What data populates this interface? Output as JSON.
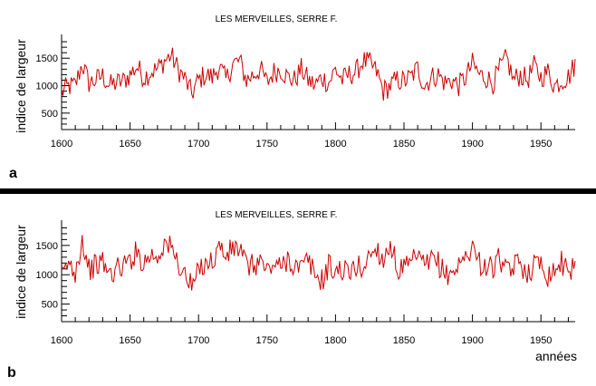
{
  "figure": {
    "separator_color": "#000000",
    "line_color": "#cc0000"
  },
  "chart_data": [
    {
      "type": "line",
      "panel_label": "a",
      "title": "LES MERVEILLES, SERRE F.",
      "xlabel": "",
      "ylabel": "indice de largeur",
      "xlim": [
        1600,
        1975
      ],
      "ylim": [
        200,
        1900
      ],
      "xticks": [
        1600,
        1650,
        1700,
        1750,
        1800,
        1850,
        1900,
        1950
      ],
      "yticks": [
        500,
        1000,
        1500
      ],
      "grid": false,
      "series": [
        {
          "x_start": 1600,
          "x_step": 5,
          "values": [
            880,
            980,
            1000,
            1400,
            1050,
            1100,
            1180,
            1000,
            1050,
            1080,
            1200,
            1350,
            1150,
            1250,
            1300,
            1450,
            1550,
            1300,
            1120,
            850,
            1100,
            1200,
            1150,
            1350,
            1100,
            1400,
            1450,
            1100,
            1200,
            1300,
            1050,
            1250,
            1300,
            1150,
            1100,
            1300,
            1100,
            1000,
            1150,
            1050,
            1300,
            1100,
            1200,
            1250,
            1450,
            1400,
            1250,
            900,
            1000,
            1100,
            1080,
            1150,
            1320,
            1000,
            1150,
            1200,
            1050,
            1100,
            1000,
            1150,
            1400,
            1200,
            1150,
            1050,
            1300,
            1500,
            1100,
            1200,
            1100,
            1350,
            1150,
            1250,
            1000,
            1100,
            1150,
            1400,
            950
          ]
        }
      ]
    },
    {
      "type": "line",
      "panel_label": "b",
      "title": "LES MERVEILLES, SERRE F.",
      "xlabel": "années",
      "ylabel": "indice de largeur",
      "xlim": [
        1600,
        1975
      ],
      "ylim": [
        200,
        1900
      ],
      "xticks": [
        1600,
        1650,
        1700,
        1750,
        1800,
        1850,
        1900,
        1950
      ],
      "yticks": [
        500,
        1000,
        1500
      ],
      "grid": false,
      "series": [
        {
          "x_start": 1600,
          "x_step": 5,
          "values": [
            950,
            1200,
            1050,
            1600,
            1100,
            1150,
            1220,
            1000,
            1100,
            1150,
            1250,
            1400,
            1200,
            1350,
            1300,
            1550,
            1450,
            1200,
            1000,
            780,
            1050,
            1250,
            1200,
            1500,
            1300,
            1450,
            1450,
            1150,
            1150,
            1250,
            1050,
            1200,
            1100,
            1300,
            1150,
            1100,
            1250,
            1000,
            900,
            1150,
            1050,
            1100,
            1000,
            1150,
            1100,
            1350,
            1450,
            1250,
            1550,
            1100,
            1100,
            1150,
            1350,
            1100,
            1250,
            1200,
            1000,
            1050,
            1150,
            1300,
            1500,
            1200,
            1150,
            1100,
            1300,
            1000,
            1150,
            1200,
            1050,
            1150,
            1250,
            1000,
            1100,
            1200,
            1150,
            1050,
            950
          ]
        }
      ]
    }
  ]
}
